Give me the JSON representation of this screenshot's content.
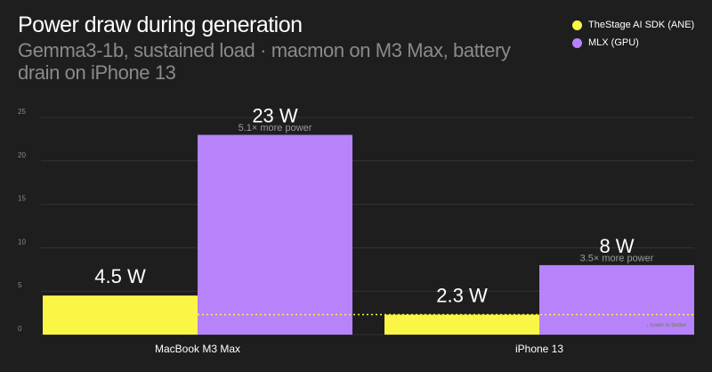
{
  "chart_data": {
    "type": "bar",
    "title": "Power draw during generation",
    "subtitle": "Gemma3-1b, sustained load · macmon on M3 Max, battery drain on iPhone 13",
    "categories": [
      "MacBook M3 Max",
      "iPhone 13"
    ],
    "series": [
      {
        "name": "TheStage AI SDK (ANE)",
        "color": "#faf645",
        "values": [
          4.5,
          2.3
        ],
        "labels": [
          "4.5 W",
          "2.3 W"
        ]
      },
      {
        "name": "MLX (GPU)",
        "color": "#b683fb",
        "values": [
          23,
          8
        ],
        "labels": [
          "23 W",
          "8 W"
        ],
        "notes": [
          "5.1× more power",
          "3.5× more power"
        ]
      }
    ],
    "ylim": [
      0,
      25
    ],
    "yticks": [
      0,
      5,
      10,
      15,
      20,
      25
    ],
    "grid": true,
    "legend": "top-right",
    "reference_line": {
      "value": 2.3,
      "label": "↓ lower is better",
      "color": "#faf645"
    },
    "xlabel": "",
    "ylabel": ""
  },
  "colors": {
    "background": "#1e1e1e",
    "grid": "#333333",
    "axis_text": "#8a8a8a"
  }
}
